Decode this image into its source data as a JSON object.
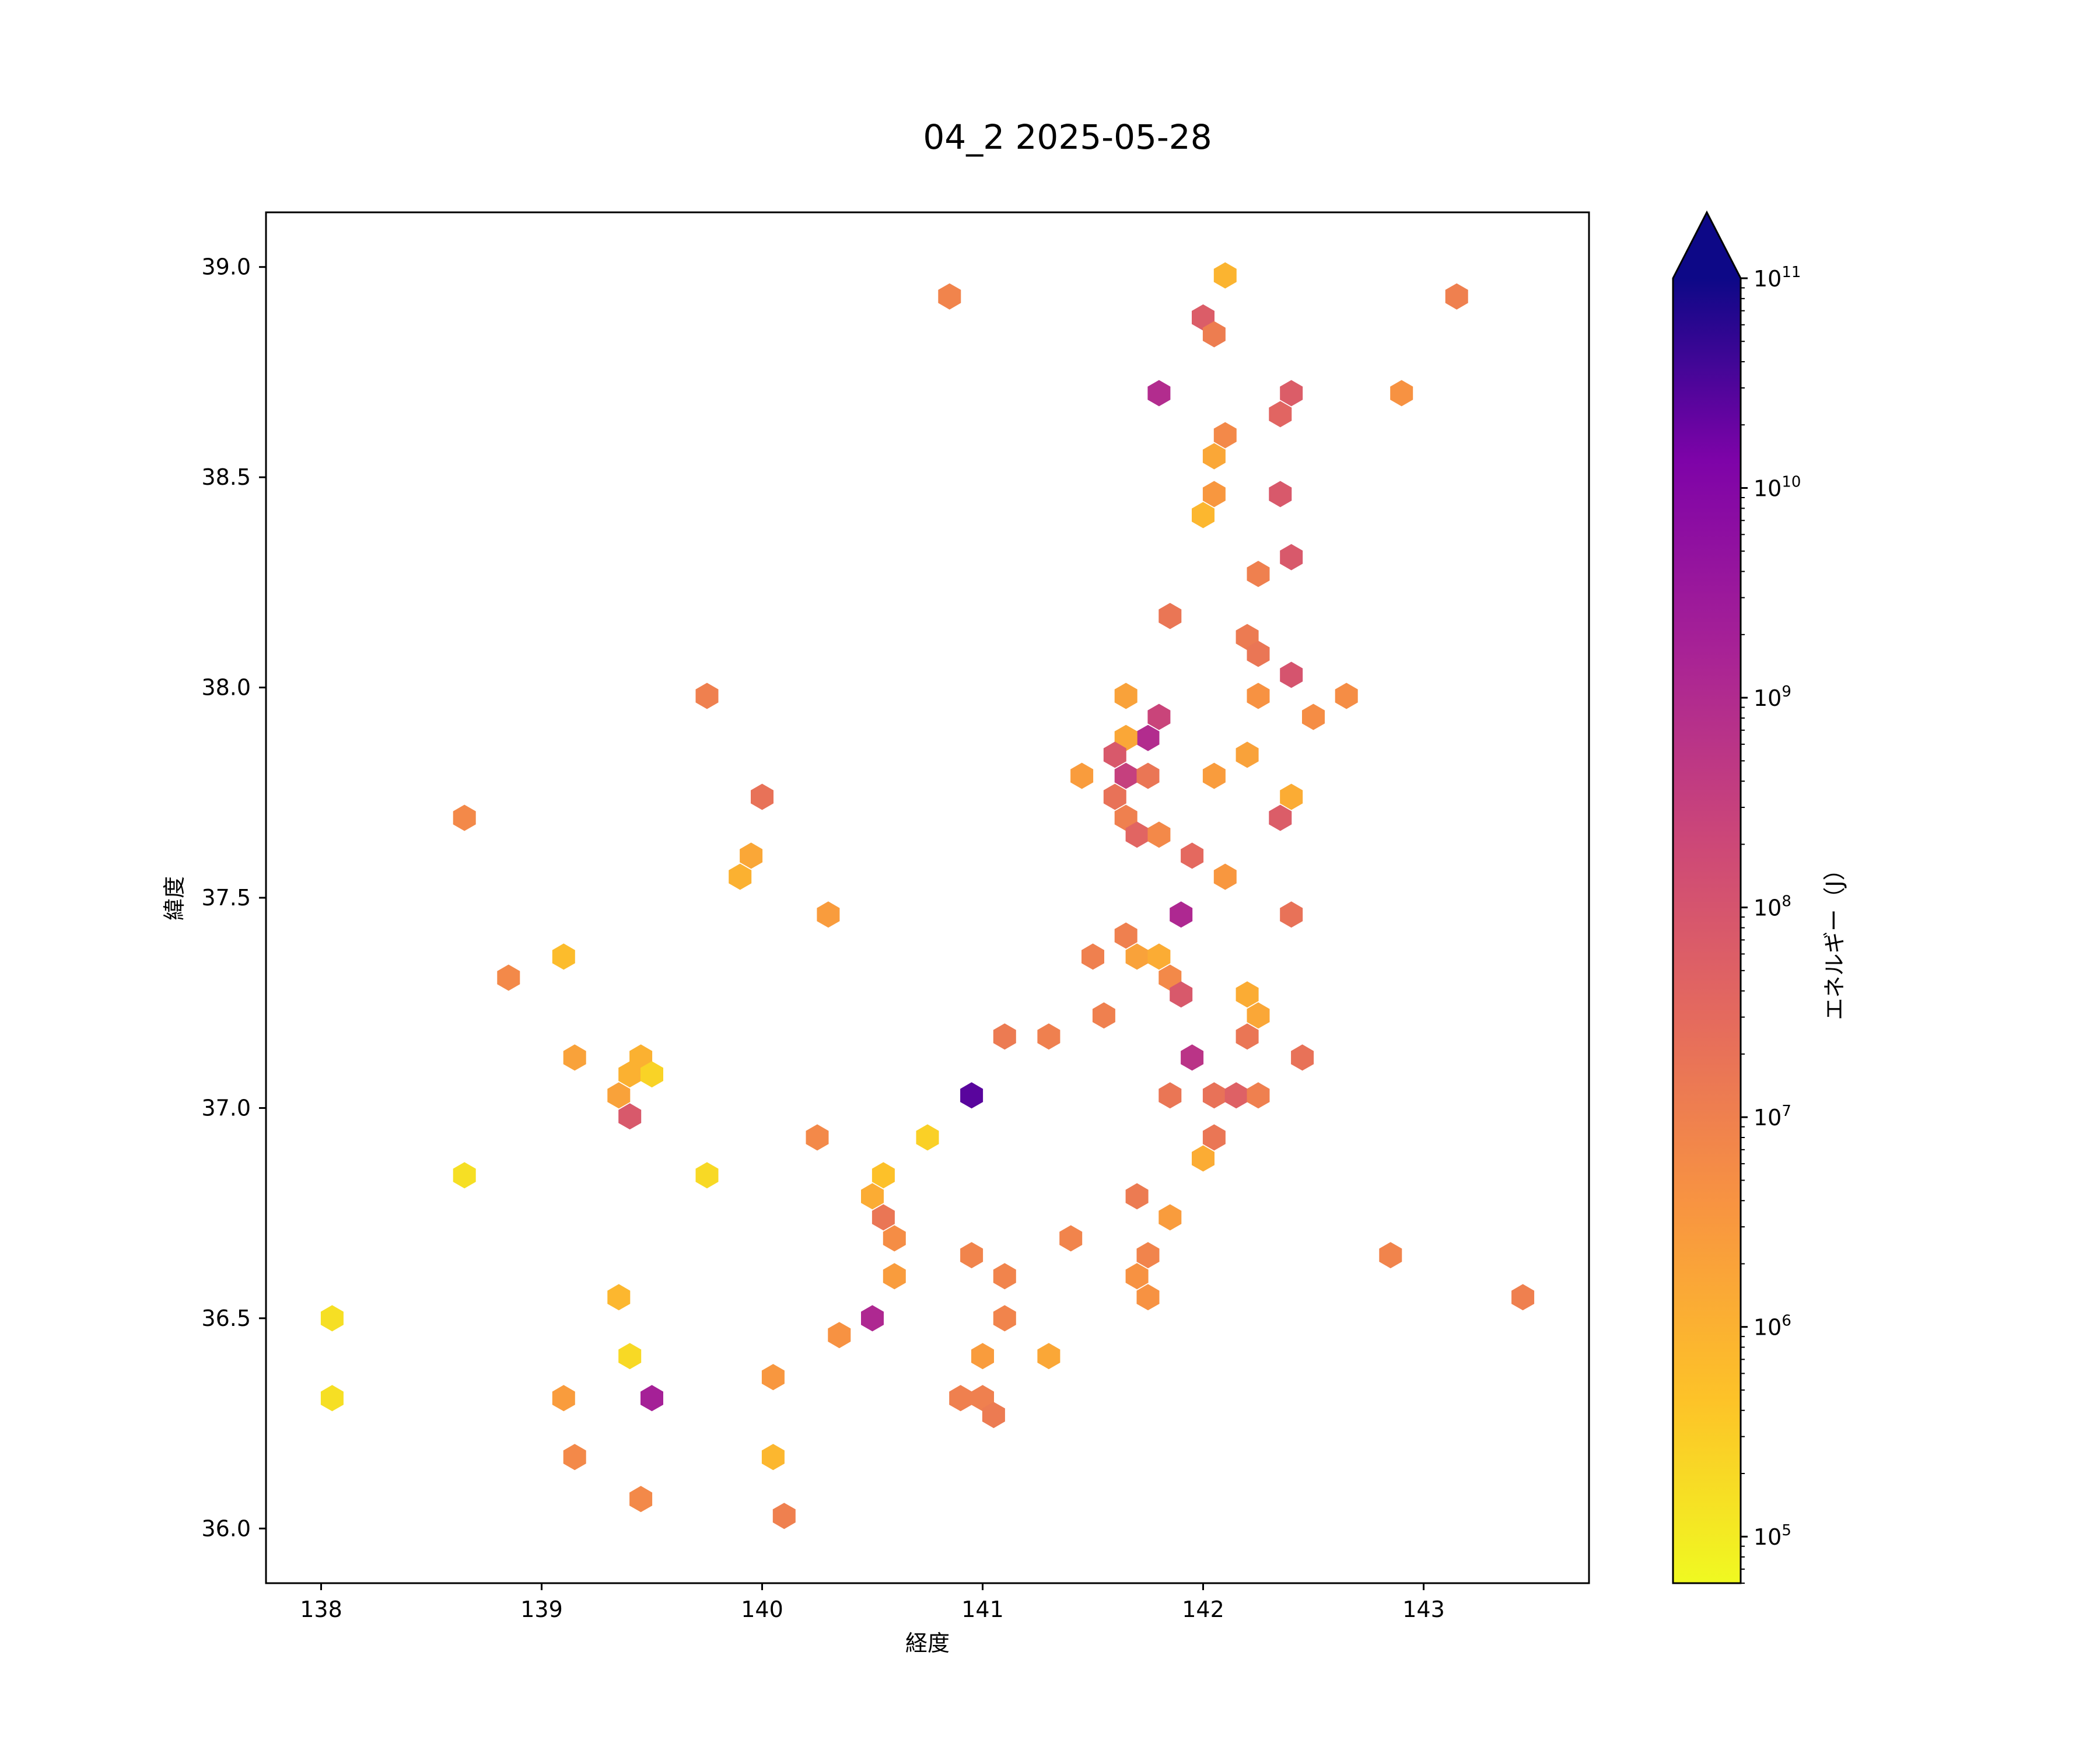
{
  "chart_data": {
    "type": "hexbin",
    "title": "04_2 2025-05-28",
    "xlabel": "経度",
    "ylabel": "緯度",
    "xlim": [
      137.75,
      143.75
    ],
    "ylim": [
      35.87,
      39.13
    ],
    "xticks": [
      "138",
      "139",
      "140",
      "141",
      "142",
      "143"
    ],
    "yticks": [
      "36.0",
      "36.5",
      "37.0",
      "37.5",
      "38.0",
      "38.5",
      "39.0"
    ],
    "colorbar": {
      "label": "エネルギー（J）",
      "scale": "log",
      "min": 60000,
      "max": 100000000000,
      "extend": "max",
      "colormap": "plasma_r",
      "tick_labels": [
        {
          "base": "10",
          "exp": "5"
        },
        {
          "base": "10",
          "exp": "6"
        },
        {
          "base": "10",
          "exp": "7"
        },
        {
          "base": "10",
          "exp": "8"
        },
        {
          "base": "10",
          "exp": "9"
        },
        {
          "base": "10",
          "exp": "10"
        },
        {
          "base": "10",
          "exp": "11"
        }
      ]
    },
    "points": [
      [
        142.1,
        38.98,
        5.95
      ],
      [
        140.85,
        38.93,
        6.9
      ],
      [
        143.15,
        38.93,
        7.0
      ],
      [
        142.0,
        38.88,
        7.8
      ],
      [
        142.05,
        38.84,
        7.05
      ],
      [
        141.8,
        38.7,
        9.0
      ],
      [
        142.4,
        38.7,
        7.8
      ],
      [
        142.9,
        38.7,
        6.6
      ],
      [
        142.35,
        38.65,
        7.6
      ],
      [
        142.1,
        38.6,
        6.8
      ],
      [
        142.05,
        38.55,
        6.2
      ],
      [
        142.05,
        38.46,
        6.5
      ],
      [
        142.35,
        38.46,
        7.9
      ],
      [
        142.0,
        38.41,
        5.9
      ],
      [
        142.4,
        38.31,
        7.9
      ],
      [
        142.25,
        38.27,
        7.0
      ],
      [
        141.85,
        38.17,
        7.2
      ],
      [
        142.2,
        38.12,
        7.1
      ],
      [
        142.25,
        38.08,
        7.2
      ],
      [
        142.4,
        38.03,
        8.0
      ],
      [
        139.75,
        37.98,
        7.0
      ],
      [
        141.65,
        37.98,
        6.3
      ],
      [
        142.25,
        37.98,
        6.6
      ],
      [
        142.65,
        37.98,
        6.7
      ],
      [
        141.8,
        37.93,
        8.4
      ],
      [
        142.5,
        37.93,
        6.7
      ],
      [
        141.75,
        37.88,
        9.0
      ],
      [
        141.65,
        37.88,
        6.2
      ],
      [
        141.6,
        37.84,
        7.9
      ],
      [
        142.2,
        37.84,
        6.3
      ],
      [
        141.45,
        37.79,
        6.4
      ],
      [
        141.65,
        37.79,
        8.5
      ],
      [
        141.75,
        37.79,
        7.2
      ],
      [
        142.05,
        37.79,
        6.4
      ],
      [
        140.0,
        37.74,
        7.3
      ],
      [
        141.6,
        37.74,
        7.3
      ],
      [
        142.4,
        37.74,
        6.1
      ],
      [
        138.65,
        37.69,
        6.8
      ],
      [
        141.65,
        37.69,
        7.0
      ],
      [
        142.35,
        37.69,
        7.8
      ],
      [
        141.7,
        37.65,
        7.6
      ],
      [
        141.8,
        37.65,
        6.8
      ],
      [
        139.95,
        37.6,
        6.2
      ],
      [
        141.95,
        37.6,
        7.5
      ],
      [
        139.9,
        37.55,
        6.0
      ],
      [
        142.1,
        37.55,
        6.5
      ],
      [
        140.3,
        37.46,
        6.4
      ],
      [
        141.9,
        37.46,
        9.1
      ],
      [
        142.4,
        37.46,
        7.3
      ],
      [
        141.65,
        37.41,
        7.0
      ],
      [
        141.5,
        37.36,
        7.0
      ],
      [
        141.7,
        37.36,
        6.3
      ],
      [
        141.8,
        37.36,
        6.1
      ],
      [
        139.1,
        37.36,
        5.8
      ],
      [
        138.85,
        37.31,
        6.8
      ],
      [
        141.85,
        37.31,
        6.8
      ],
      [
        141.9,
        37.27,
        7.9
      ],
      [
        142.2,
        37.27,
        6.1
      ],
      [
        141.55,
        37.22,
        7.0
      ],
      [
        142.25,
        37.22,
        6.2
      ],
      [
        141.1,
        37.17,
        7.1
      ],
      [
        141.3,
        37.17,
        7.0
      ],
      [
        142.2,
        37.17,
        7.2
      ],
      [
        139.15,
        37.12,
        6.3
      ],
      [
        139.45,
        37.12,
        6.0
      ],
      [
        141.95,
        37.12,
        8.8
      ],
      [
        142.45,
        37.12,
        7.3
      ],
      [
        139.4,
        37.08,
        6.0
      ],
      [
        139.5,
        37.08,
        5.4
      ],
      [
        139.35,
        37.03,
        6.3
      ],
      [
        140.95,
        37.03,
        10.4
      ],
      [
        141.85,
        37.03,
        7.2
      ],
      [
        142.05,
        37.03,
        7.3
      ],
      [
        142.15,
        37.03,
        7.7
      ],
      [
        142.25,
        37.03,
        7.0
      ],
      [
        139.4,
        36.98,
        7.9
      ],
      [
        140.25,
        36.93,
        6.8
      ],
      [
        140.75,
        36.93,
        5.45
      ],
      [
        142.05,
        36.93,
        7.2
      ],
      [
        142.0,
        36.88,
        6.1
      ],
      [
        138.65,
        36.84,
        5.2
      ],
      [
        139.75,
        36.84,
        5.3
      ],
      [
        140.55,
        36.84,
        5.7
      ],
      [
        140.5,
        36.79,
        6.1
      ],
      [
        141.7,
        36.79,
        7.1
      ],
      [
        140.55,
        36.74,
        7.2
      ],
      [
        141.85,
        36.74,
        6.4
      ],
      [
        140.6,
        36.69,
        6.7
      ],
      [
        141.4,
        36.69,
        6.9
      ],
      [
        140.95,
        36.65,
        6.9
      ],
      [
        141.75,
        36.65,
        6.9
      ],
      [
        142.85,
        36.65,
        6.9
      ],
      [
        140.6,
        36.6,
        6.4
      ],
      [
        141.1,
        36.6,
        6.9
      ],
      [
        141.7,
        36.6,
        6.6
      ],
      [
        139.35,
        36.55,
        5.9
      ],
      [
        141.75,
        36.55,
        6.6
      ],
      [
        143.45,
        36.55,
        7.0
      ],
      [
        138.05,
        36.5,
        5.2
      ],
      [
        140.5,
        36.5,
        9.1
      ],
      [
        141.1,
        36.5,
        6.9
      ],
      [
        140.35,
        36.46,
        6.6
      ],
      [
        139.4,
        36.41,
        5.3
      ],
      [
        141.0,
        36.41,
        6.4
      ],
      [
        141.3,
        36.41,
        6.2
      ],
      [
        140.05,
        36.36,
        6.5
      ],
      [
        138.05,
        36.31,
        5.2
      ],
      [
        139.1,
        36.31,
        6.4
      ],
      [
        139.5,
        36.31,
        9.3
      ],
      [
        140.9,
        36.31,
        7.0
      ],
      [
        141.0,
        36.31,
        7.0
      ],
      [
        141.05,
        36.27,
        7.1
      ],
      [
        139.15,
        36.17,
        6.8
      ],
      [
        140.05,
        36.17,
        5.9
      ],
      [
        139.45,
        36.07,
        6.8
      ],
      [
        140.1,
        36.03,
        7.0
      ]
    ]
  }
}
